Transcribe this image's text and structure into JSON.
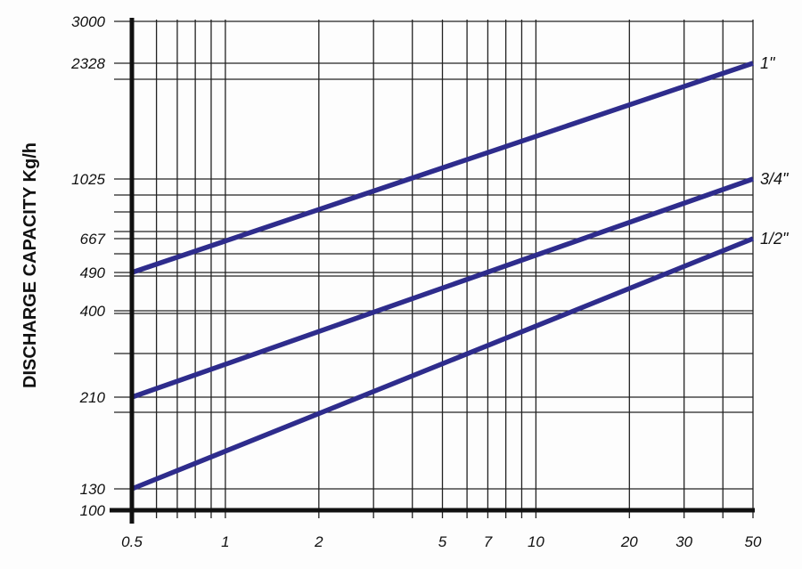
{
  "chart_data": {
    "type": "line",
    "title": "",
    "xlabel": "",
    "ylabel": "DISCHARGE CAPACITY  Kg/h",
    "x_scale": "log",
    "y_scale": "log",
    "xlim": [
      0.5,
      50
    ],
    "ylim": [
      100,
      3000
    ],
    "grid": true,
    "x_ticks": [
      "0.5",
      "1",
      "2",
      "5",
      "7",
      "10",
      "20",
      "30",
      "50"
    ],
    "y_ticks": [
      "3000",
      "2328",
      "1025",
      "667",
      "490",
      "400",
      "210",
      "130",
      "100"
    ],
    "series": [
      {
        "name": "1\"",
        "x": [
          0.5,
          50
        ],
        "y": [
          490,
          2328
        ],
        "color": "#2e2c8c"
      },
      {
        "name": "3/4\"",
        "x": [
          0.5,
          50
        ],
        "y": [
          210,
          1025
        ],
        "color": "#2e2c8c"
      },
      {
        "name": "1/2\"",
        "x": [
          0.5,
          50
        ],
        "y": [
          130,
          667
        ],
        "color": "#2e2c8c"
      }
    ],
    "legend": "inline-right"
  }
}
